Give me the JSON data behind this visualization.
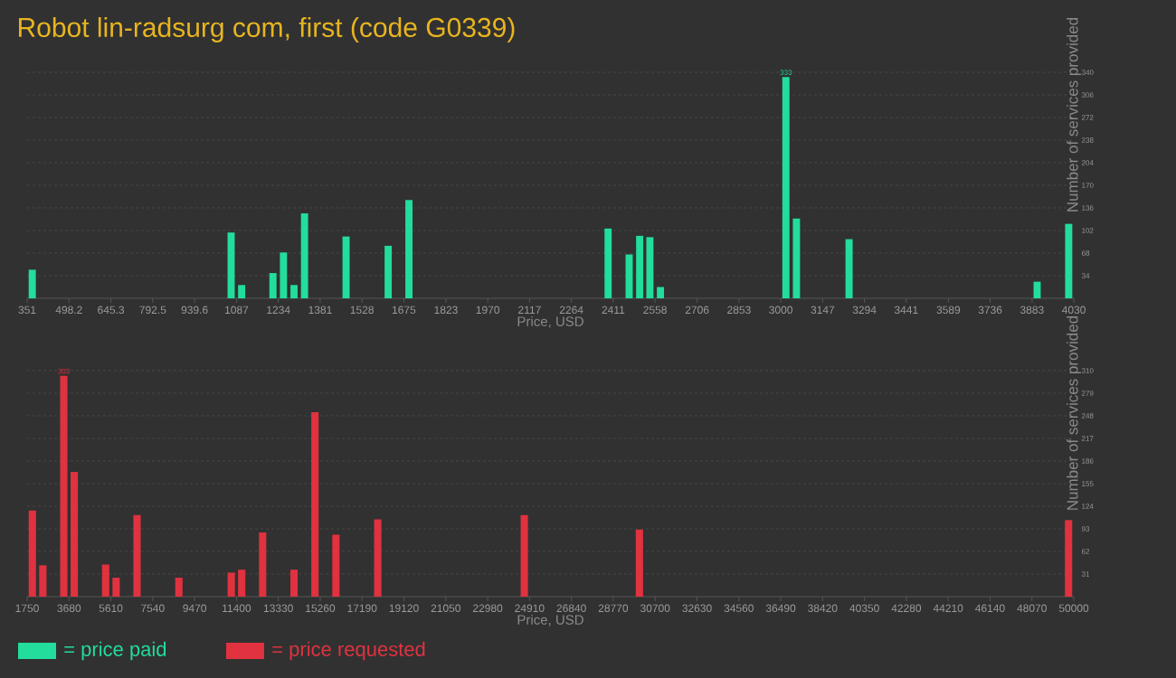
{
  "chart_data": [
    {
      "type": "bar",
      "title": "Robot lin-radsurg com, first (code G0339)",
      "xlabel": "Price, USD",
      "ylabel": "Number of services provided",
      "x": [
        369,
        1068,
        1105,
        1215,
        1252,
        1289,
        1326,
        1472,
        1620,
        1693,
        2393,
        2467,
        2504,
        2540,
        2577,
        3018,
        3055,
        3240,
        3901,
        4012
      ],
      "series": [
        {
          "name": "= price paid",
          "color": "#22dd9b",
          "values": [
            43,
            99,
            20,
            38,
            69,
            20,
            128,
            93,
            79,
            148,
            105,
            66,
            94,
            92,
            17,
            333,
            120,
            89,
            25,
            112
          ],
          "value_labels": [
            null,
            null,
            null,
            null,
            null,
            null,
            null,
            null,
            null,
            null,
            null,
            null,
            null,
            null,
            null,
            "333",
            null,
            null,
            null,
            null
          ]
        }
      ],
      "xlim": [
        351,
        4030
      ],
      "xticks": [
        351,
        498.2,
        645.3,
        792.5,
        939.6,
        1087,
        1234,
        1381,
        1528,
        1675,
        1823,
        1970,
        2117,
        2264,
        2411,
        2558,
        2706,
        2853,
        3000,
        3147,
        3294,
        3441,
        3589,
        3736,
        3883,
        4030
      ],
      "ylim": [
        0,
        340
      ],
      "yticks": [
        34,
        68,
        102,
        136,
        170,
        204,
        238,
        272,
        306,
        340
      ],
      "grid": "y",
      "legend": "bottom left"
    },
    {
      "type": "bar",
      "xlabel": "Price, USD",
      "ylabel": "Number of services provided",
      "x": [
        1991,
        2474,
        3439,
        3921,
        5369,
        5851,
        6816,
        8746,
        11159,
        11641,
        12606,
        14054,
        15019,
        15984,
        17914,
        24669,
        29976,
        49759
      ],
      "series": [
        {
          "name": "= price requested",
          "color": "#e0323f",
          "values": [
            118,
            43,
            303,
            171,
            44,
            26,
            112,
            26,
            33,
            37,
            88,
            37,
            253,
            85,
            106,
            112,
            92,
            105
          ],
          "value_labels": [
            null,
            null,
            "303",
            null,
            null,
            null,
            null,
            null,
            null,
            null,
            null,
            null,
            null,
            null,
            null,
            null,
            null,
            null
          ]
        }
      ],
      "xlim": [
        1750,
        50000
      ],
      "xticks": [
        1750,
        3680,
        5610,
        7540,
        9470,
        11400,
        13330,
        15260,
        17190,
        19120,
        21050,
        22980,
        24910,
        26840,
        28770,
        30700,
        32630,
        34560,
        36490,
        38420,
        40350,
        42280,
        44210,
        46140,
        48070,
        50000
      ],
      "ylim": [
        0,
        310
      ],
      "yticks": [
        31,
        62,
        93,
        124,
        155,
        186,
        217,
        248,
        279,
        310
      ],
      "grid": "y",
      "legend": "bottom left"
    }
  ]
}
